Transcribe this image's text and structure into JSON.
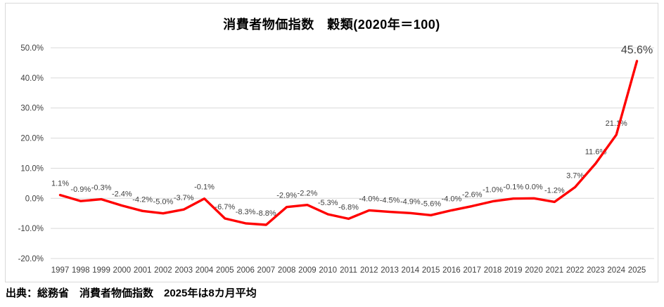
{
  "page": {
    "title": "消費者物価指数　穀類(2020年＝100)",
    "source_note": "出典：総務省　消費者物価指数　2025年は8カ月平均"
  },
  "colors": {
    "line": "#ff0000",
    "gridline": "#d9d9d9",
    "axis_text": "#404040",
    "frame_border": "#d9d9d9",
    "background": "#ffffff"
  },
  "chart_data": {
    "type": "line",
    "title": "消費者物価指数　穀類(2020年＝100)",
    "x": [
      1997,
      1998,
      1999,
      2000,
      2001,
      2002,
      2003,
      2004,
      2005,
      2006,
      2007,
      2008,
      2009,
      2010,
      2011,
      2012,
      2013,
      2014,
      2015,
      2016,
      2017,
      2018,
      2019,
      2020,
      2021,
      2022,
      2023,
      2024,
      2025
    ],
    "values": [
      1.1,
      -0.9,
      -0.3,
      -2.4,
      -4.2,
      -5.0,
      -3.7,
      -0.1,
      -6.7,
      -8.3,
      -8.8,
      -2.9,
      -2.2,
      -5.3,
      -6.8,
      -4.0,
      -4.5,
      -4.9,
      -5.6,
      -4.0,
      -2.6,
      -1.0,
      -0.1,
      0.0,
      -1.2,
      3.7,
      11.6,
      21.1,
      45.6
    ],
    "point_labels": [
      "1.1%",
      "-0.9%",
      "-0.3%",
      "-2.4%",
      "-4.2%",
      "-5.0%",
      "-3.7%",
      "-0.1%",
      "-6.7%",
      "-8.3%",
      "-8.8%",
      "-2.9%",
      "-2.2%",
      "-5.3%",
      "-6.8%",
      "-4.0%",
      "-4.5%",
      "-4.9%",
      "-5.6%",
      "-4.0%",
      "-2.6%",
      "-1.0%",
      "-0.1%",
      "0.0%",
      "-1.2%",
      "3.7%",
      "11.6%",
      "21.1%",
      "45.6%"
    ],
    "ytick_labels": [
      "50.0%",
      "40.0%",
      "30.0%",
      "20.0%",
      "10.0%",
      "0.0%",
      "-10.0%",
      "-20.0%"
    ],
    "ytick_values": [
      50,
      40,
      30,
      20,
      10,
      0,
      -10,
      -20
    ],
    "ylim": [
      -20,
      50
    ],
    "grid": true,
    "legend": "none",
    "xlabel": "",
    "ylabel": ""
  }
}
